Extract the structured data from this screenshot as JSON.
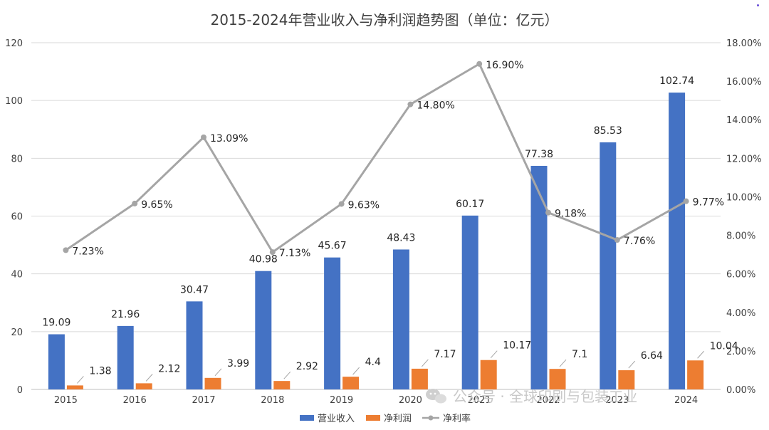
{
  "chart_data": {
    "type": "bar+line",
    "title": "2015-2024年营业收入与净利润趋势图（单位：亿元）",
    "categories": [
      "2015",
      "2016",
      "2017",
      "2018",
      "2019",
      "2020",
      "2021",
      "2022",
      "2023",
      "2024"
    ],
    "series": [
      {
        "name": "营业收入",
        "type": "bar",
        "axis": "left",
        "color": "#4472c4",
        "values": [
          19.09,
          21.96,
          30.47,
          40.98,
          45.67,
          48.43,
          60.17,
          77.38,
          85.53,
          102.74
        ],
        "labels": [
          "19.09",
          "21.96",
          "30.47",
          "40.98",
          "45.67",
          "48.43",
          "60.17",
          "77.38",
          "85.53",
          "102.74"
        ]
      },
      {
        "name": "净利润",
        "type": "bar",
        "axis": "left",
        "color": "#ed7d31",
        "values": [
          1.38,
          2.12,
          3.99,
          2.92,
          4.4,
          7.17,
          10.17,
          7.1,
          6.64,
          10.04
        ],
        "labels": [
          "1.38",
          "2.12",
          "3.99",
          "2.92",
          "4.4",
          "7.17",
          "10.17",
          "7.1",
          "6.64",
          "10.04"
        ]
      },
      {
        "name": "净利率",
        "type": "line",
        "axis": "right",
        "color": "#a5a5a5",
        "values": [
          7.23,
          9.65,
          13.09,
          7.13,
          9.63,
          14.8,
          16.9,
          9.18,
          7.76,
          9.77
        ],
        "labels": [
          "7.23%",
          "9.65%",
          "13.09%",
          "7.13%",
          "9.63%",
          "14.80%",
          "16.90%",
          "9.18%",
          "7.76%",
          "9.77%"
        ]
      }
    ],
    "y_left": {
      "min": 0,
      "max": 120,
      "ticks": [
        "0",
        "20",
        "40",
        "60",
        "80",
        "100",
        "120"
      ]
    },
    "y_right": {
      "min": 0,
      "max": 18,
      "ticks": [
        "0.00%",
        "2.00%",
        "4.00%",
        "6.00%",
        "8.00%",
        "10.00%",
        "12.00%",
        "14.00%",
        "16.00%",
        "18.00%"
      ]
    },
    "grid": true,
    "legend": "bottom"
  },
  "watermark": {
    "text": "公众号 · 全球印刷与包装工业",
    "icon": "wechat-icon"
  }
}
